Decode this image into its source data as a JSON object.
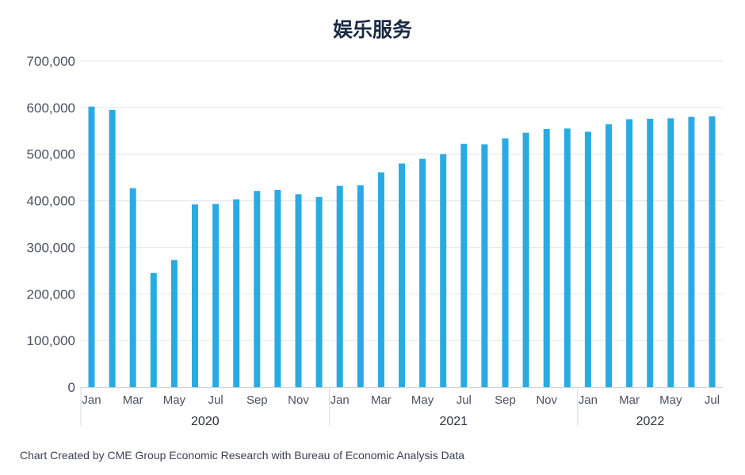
{
  "chart_data": {
    "type": "bar",
    "title": "娱乐服务",
    "xlabel": "",
    "ylabel": "",
    "ylim": [
      0,
      700000
    ],
    "yticks": [
      "0",
      "100,000",
      "200,000",
      "300,000",
      "400,000",
      "500,000",
      "600,000",
      "700,000"
    ],
    "ytick_values": [
      0,
      100000,
      200000,
      300000,
      400000,
      500000,
      600000,
      700000
    ],
    "grid": true,
    "bar_color": "#29abe2",
    "categories": [
      "Jan 2020",
      "Feb 2020",
      "Mar 2020",
      "Apr 2020",
      "May 2020",
      "Jun 2020",
      "Jul 2020",
      "Aug 2020",
      "Sep 2020",
      "Oct 2020",
      "Nov 2020",
      "Dec 2020",
      "Jan 2021",
      "Feb 2021",
      "Mar 2021",
      "Apr 2021",
      "May 2021",
      "Jun 2021",
      "Jul 2021",
      "Aug 2021",
      "Sep 2021",
      "Oct 2021",
      "Nov 2021",
      "Dec 2021",
      "Jan 2022",
      "Feb 2022",
      "Mar 2022",
      "Apr 2022",
      "May 2022",
      "Jun 2022",
      "Jul 2022"
    ],
    "month_tick_labels": [
      "Jan",
      "",
      "Mar",
      "",
      "May",
      "",
      "Jul",
      "",
      "Sep",
      "",
      "Nov",
      "",
      "Jan",
      "",
      "Mar",
      "",
      "May",
      "",
      "Jul",
      "",
      "Sep",
      "",
      "Nov",
      "",
      "Jan",
      "",
      "Mar",
      "",
      "May",
      "",
      "Jul"
    ],
    "year_groups": [
      {
        "label": "2020",
        "start": 0,
        "end": 11
      },
      {
        "label": "2021",
        "start": 12,
        "end": 23
      },
      {
        "label": "2022",
        "start": 24,
        "end": 30
      }
    ],
    "values": [
      602000,
      595000,
      427000,
      245000,
      273000,
      392000,
      393000,
      403000,
      421000,
      423000,
      414000,
      408000,
      432000,
      433000,
      461000,
      480000,
      490000,
      500000,
      522000,
      521000,
      534000,
      546000,
      554000,
      555000,
      548000,
      564000,
      575000,
      576000,
      577000,
      580000,
      581000
    ]
  },
  "footer": {
    "note": "Chart Created by CME Group Economic Research with Bureau of Economic Analysis Data"
  }
}
